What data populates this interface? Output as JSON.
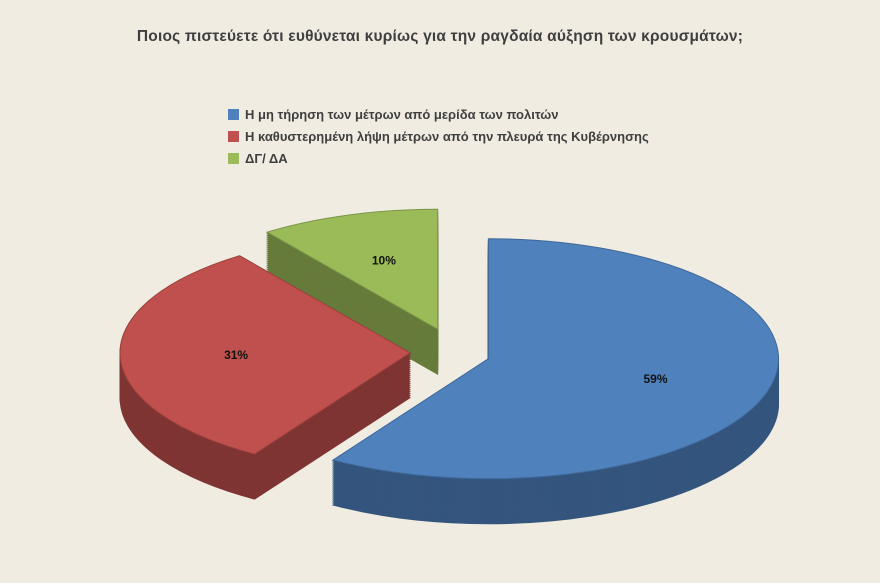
{
  "chart_data": {
    "type": "pie",
    "is_3d": true,
    "exploded": true,
    "title": "Ποιος πιστεύετε ότι ευθύνεται κυρίως για την ραγδαία αύξηση των κρουσμάτων;",
    "legend_position": "top-left",
    "background_color": "#F0ECE2",
    "start_angle_deg": 0,
    "direction": "clockwise",
    "grid": false,
    "series": [
      {
        "name": "Η μη τήρηση των μέτρων από μερίδα των πολιτών",
        "value": 59,
        "label": "59%",
        "color": "#4F81BD"
      },
      {
        "name": "Η καθυστερημένη λήψη μέτρων από την πλευρά της Κυβέρνησης",
        "value": 31,
        "label": "31%",
        "color": "#C0504D"
      },
      {
        "name": "ΔΓ/ ΔΑ",
        "value": 10,
        "label": "10%",
        "color": "#9BBB59"
      }
    ]
  }
}
